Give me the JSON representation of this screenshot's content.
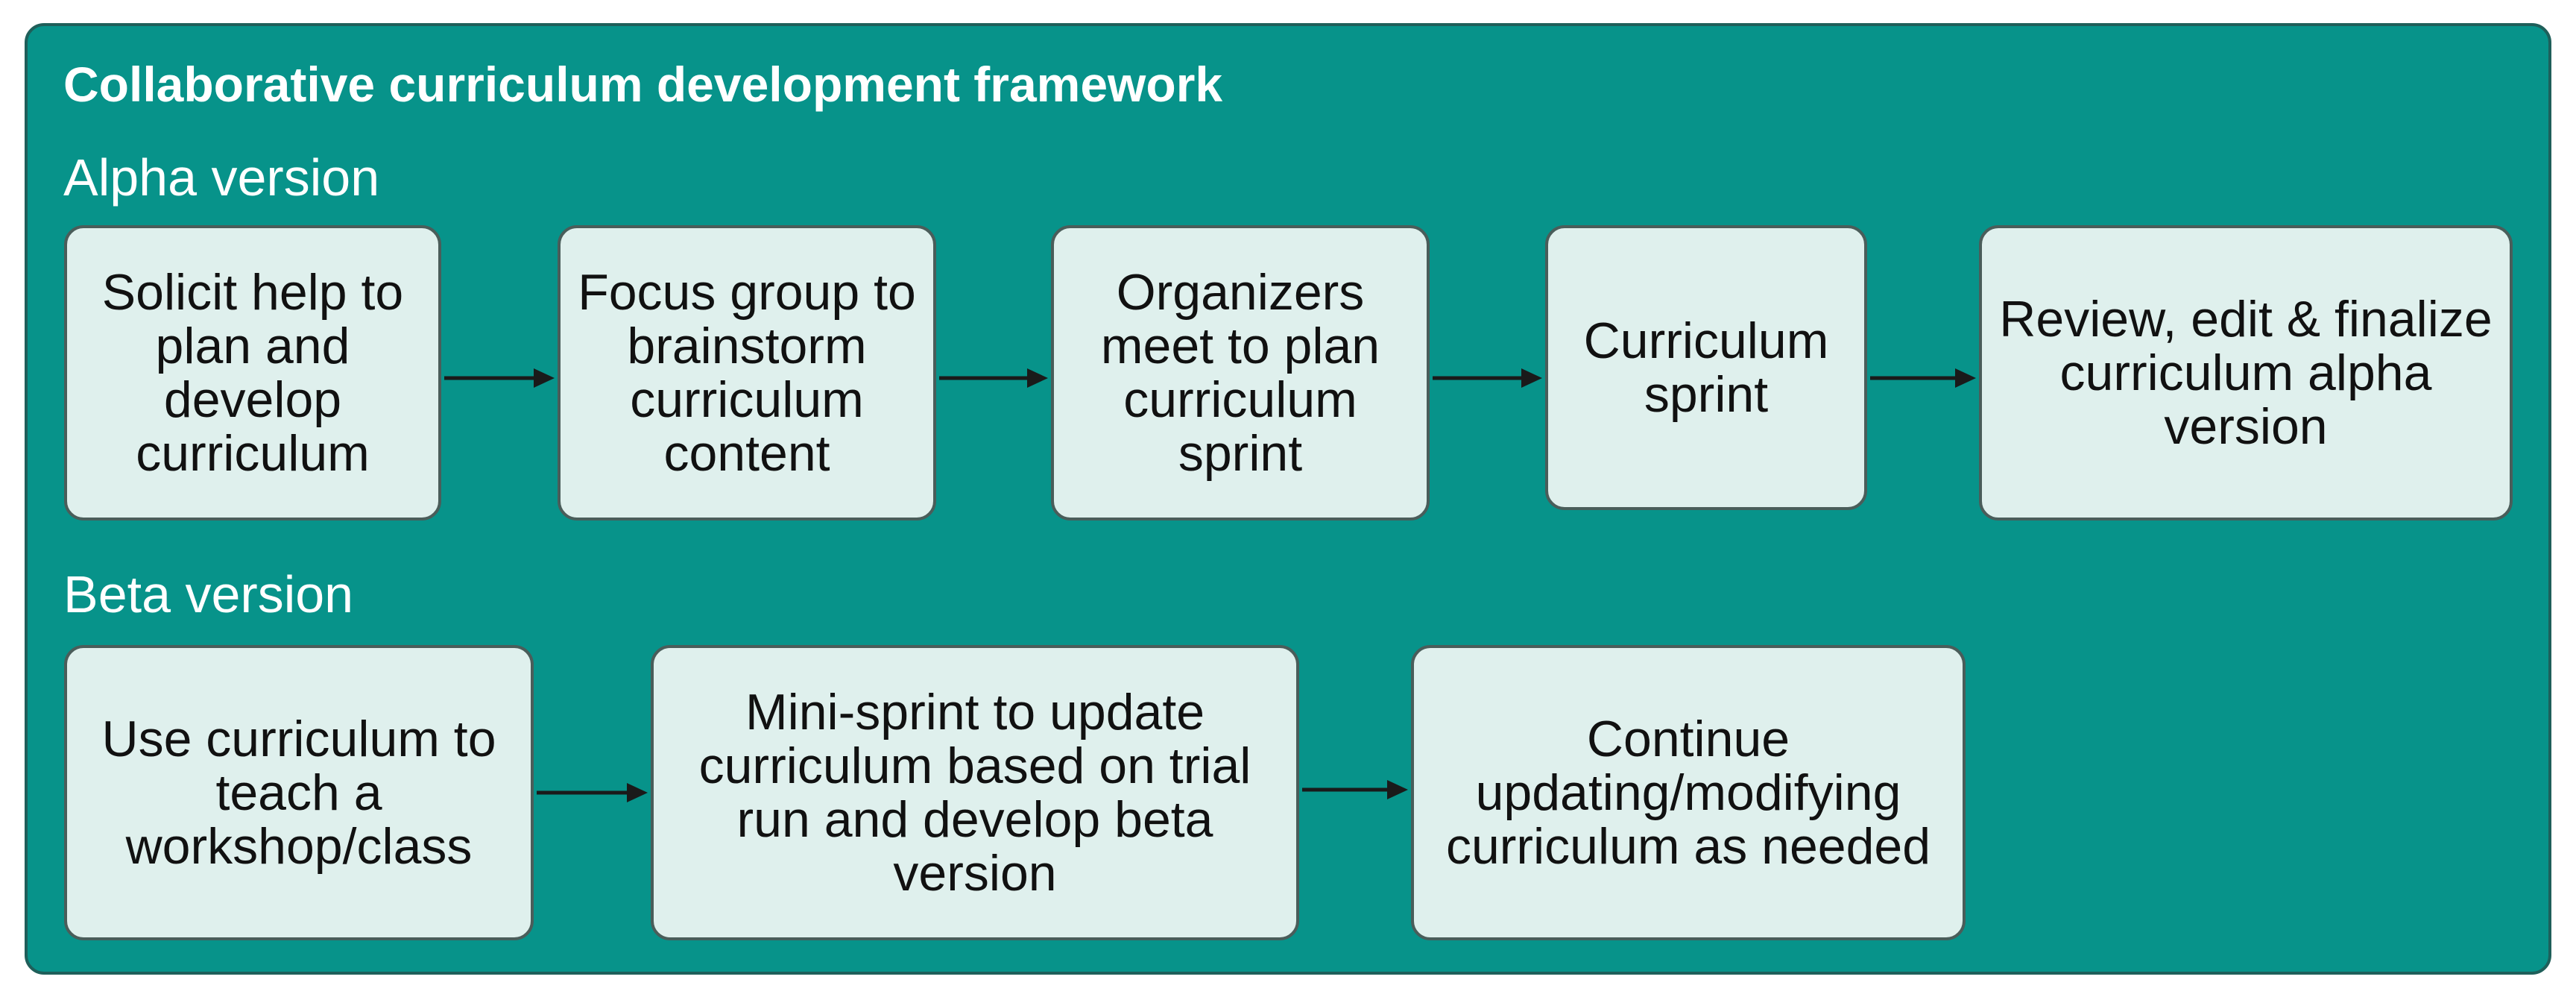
{
  "diagram": {
    "title": "Collaborative curriculum development framework",
    "alpha": {
      "label": "Alpha version",
      "steps": [
        "Solicit help to plan and develop curriculum",
        "Focus group to brainstorm curriculum content",
        "Organizers meet to plan curriculum sprint",
        "Curriculum sprint",
        "Review, edit & finalize curriculum alpha version"
      ]
    },
    "beta": {
      "label": "Beta version",
      "steps": [
        "Use curriculum to teach a workshop/class",
        "Mini-sprint to update curriculum based on trial run and develop beta version",
        "Continue updating/modifying curriculum as needed"
      ]
    }
  },
  "colors": {
    "panel": "#07938a",
    "box": "#dff0ed",
    "arrow": "#1a1a1a",
    "text_light": "#ffffff",
    "text_dark": "#111111"
  }
}
